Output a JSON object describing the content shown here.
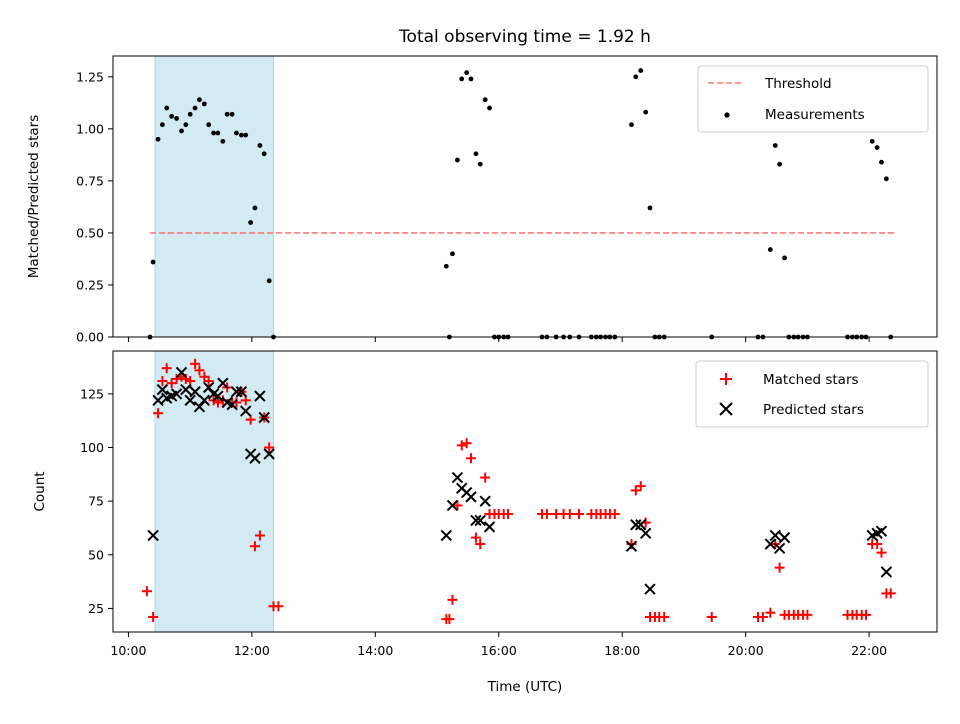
{
  "chart_data": {
    "title": "Total observing time = 1.92 h",
    "xlabel": "Time (UTC)",
    "x_ticks": [
      "10:00",
      "12:00",
      "14:00",
      "16:00",
      "18:00",
      "20:00",
      "22:00"
    ],
    "x_tick_hours": [
      10,
      12,
      14,
      16,
      18,
      20,
      22
    ],
    "xlim_hours": [
      9.75,
      23.1
    ],
    "shaded_interval_hours": [
      10.43,
      12.35
    ],
    "shade_color": "#add8e6",
    "panels": [
      {
        "type": "scatter",
        "ylabel": "Matched/Predicted stars",
        "ylim": [
          0,
          1.35
        ],
        "y_ticks": [
          0.0,
          0.25,
          0.5,
          0.75,
          1.0,
          1.25
        ],
        "y_tick_labels": [
          "0.00",
          "0.25",
          "0.50",
          "0.75",
          "1.00",
          "1.25"
        ],
        "legend_position": "upper-right",
        "threshold": {
          "name": "Threshold",
          "value": 0.5,
          "x_range": [
            10.35,
            22.45
          ],
          "color": "#ff7777"
        },
        "measurements": {
          "name": "Measurements",
          "color": "#000000",
          "points": [
            [
              10.35,
              0.0
            ],
            [
              10.4,
              0.36
            ],
            [
              10.48,
              0.95
            ],
            [
              10.55,
              1.02
            ],
            [
              10.62,
              1.1
            ],
            [
              10.7,
              1.06
            ],
            [
              10.78,
              1.05
            ],
            [
              10.86,
              0.99
            ],
            [
              10.93,
              1.02
            ],
            [
              11.0,
              1.07
            ],
            [
              11.08,
              1.1
            ],
            [
              11.15,
              1.14
            ],
            [
              11.23,
              1.12
            ],
            [
              11.3,
              1.02
            ],
            [
              11.38,
              0.98
            ],
            [
              11.45,
              0.98
            ],
            [
              11.53,
              0.94
            ],
            [
              11.6,
              1.07
            ],
            [
              11.68,
              1.07
            ],
            [
              11.75,
              0.98
            ],
            [
              11.83,
              0.97
            ],
            [
              11.9,
              0.97
            ],
            [
              11.98,
              0.55
            ],
            [
              12.05,
              0.62
            ],
            [
              12.13,
              0.92
            ],
            [
              12.2,
              0.88
            ],
            [
              12.28,
              0.27
            ],
            [
              12.35,
              0.0
            ],
            [
              15.15,
              0.34
            ],
            [
              15.2,
              0.0
            ],
            [
              15.25,
              0.4
            ],
            [
              15.33,
              0.85
            ],
            [
              15.4,
              1.24
            ],
            [
              15.48,
              1.27
            ],
            [
              15.55,
              1.24
            ],
            [
              15.63,
              0.88
            ],
            [
              15.7,
              0.83
            ],
            [
              15.78,
              1.14
            ],
            [
              15.85,
              1.1
            ],
            [
              15.93,
              0.0
            ],
            [
              16.0,
              0.0
            ],
            [
              16.08,
              0.0
            ],
            [
              16.15,
              0.0
            ],
            [
              16.7,
              0.0
            ],
            [
              16.78,
              0.0
            ],
            [
              16.93,
              0.0
            ],
            [
              17.05,
              0.0
            ],
            [
              17.15,
              0.0
            ],
            [
              17.3,
              0.0
            ],
            [
              17.5,
              0.0
            ],
            [
              17.58,
              0.0
            ],
            [
              17.65,
              0.0
            ],
            [
              17.73,
              0.0
            ],
            [
              17.8,
              0.0
            ],
            [
              17.88,
              0.0
            ],
            [
              18.15,
              1.02
            ],
            [
              18.22,
              1.25
            ],
            [
              18.3,
              1.28
            ],
            [
              18.38,
              1.08
            ],
            [
              18.45,
              0.62
            ],
            [
              18.53,
              0.0
            ],
            [
              18.6,
              0.0
            ],
            [
              18.68,
              0.0
            ],
            [
              19.45,
              0.0
            ],
            [
              20.2,
              0.0
            ],
            [
              20.28,
              0.0
            ],
            [
              20.4,
              0.42
            ],
            [
              20.48,
              0.92
            ],
            [
              20.55,
              0.83
            ],
            [
              20.63,
              0.38
            ],
            [
              20.7,
              0.0
            ],
            [
              20.78,
              0.0
            ],
            [
              20.85,
              0.0
            ],
            [
              20.93,
              0.0
            ],
            [
              21.0,
              0.0
            ],
            [
              21.65,
              0.0
            ],
            [
              21.73,
              0.0
            ],
            [
              21.8,
              0.0
            ],
            [
              21.88,
              0.0
            ],
            [
              21.95,
              0.0
            ],
            [
              22.05,
              0.94
            ],
            [
              22.13,
              0.91
            ],
            [
              22.2,
              0.84
            ],
            [
              22.28,
              0.76
            ],
            [
              22.35,
              0.0
            ]
          ]
        }
      },
      {
        "type": "scatter",
        "ylabel": "Count",
        "ylim": [
          14,
          145
        ],
        "y_ticks": [
          25,
          50,
          75,
          100,
          125
        ],
        "y_tick_labels": [
          "25",
          "50",
          "75",
          "100",
          "125"
        ],
        "legend_position": "upper-right",
        "matched": {
          "name": "Matched stars",
          "color": "#ff0000",
          "points": [
            [
              10.3,
              33
            ],
            [
              10.4,
              21
            ],
            [
              10.48,
              116
            ],
            [
              10.55,
              131
            ],
            [
              10.62,
              137
            ],
            [
              10.7,
              130
            ],
            [
              10.78,
              132
            ],
            [
              10.86,
              133
            ],
            [
              10.93,
              132
            ],
            [
              11.0,
              131
            ],
            [
              11.08,
              139
            ],
            [
              11.15,
              136
            ],
            [
              11.23,
              133
            ],
            [
              11.3,
              131
            ],
            [
              11.38,
              122
            ],
            [
              11.45,
              121
            ],
            [
              11.53,
              122
            ],
            [
              11.6,
              128
            ],
            [
              11.68,
              121
            ],
            [
              11.75,
              121
            ],
            [
              11.83,
              126
            ],
            [
              11.9,
              122
            ],
            [
              11.98,
              113
            ],
            [
              12.05,
              54
            ],
            [
              12.13,
              59
            ],
            [
              12.2,
              114
            ],
            [
              12.28,
              100
            ],
            [
              12.35,
              26
            ],
            [
              12.43,
              26
            ],
            [
              15.15,
              20
            ],
            [
              15.2,
              20
            ],
            [
              15.25,
              29
            ],
            [
              15.33,
              73
            ],
            [
              15.4,
              101
            ],
            [
              15.48,
              102
            ],
            [
              15.55,
              95
            ],
            [
              15.63,
              58
            ],
            [
              15.7,
              55
            ],
            [
              15.78,
              86
            ],
            [
              15.85,
              69
            ],
            [
              15.93,
              69
            ],
            [
              16.0,
              69
            ],
            [
              16.08,
              69
            ],
            [
              16.15,
              69
            ],
            [
              16.7,
              69
            ],
            [
              16.78,
              69
            ],
            [
              16.93,
              69
            ],
            [
              17.05,
              69
            ],
            [
              17.15,
              69
            ],
            [
              17.3,
              69
            ],
            [
              17.5,
              69
            ],
            [
              17.58,
              69
            ],
            [
              17.65,
              69
            ],
            [
              17.73,
              69
            ],
            [
              17.8,
              69
            ],
            [
              17.88,
              69
            ],
            [
              18.15,
              55
            ],
            [
              18.22,
              80
            ],
            [
              18.3,
              82
            ],
            [
              18.38,
              65
            ],
            [
              18.45,
              21
            ],
            [
              18.53,
              21
            ],
            [
              18.6,
              21
            ],
            [
              18.68,
              21
            ],
            [
              19.45,
              21
            ],
            [
              20.2,
              21
            ],
            [
              20.28,
              21
            ],
            [
              20.4,
              23
            ],
            [
              20.48,
              55
            ],
            [
              20.55,
              44
            ],
            [
              20.63,
              22
            ],
            [
              20.7,
              22
            ],
            [
              20.78,
              22
            ],
            [
              20.85,
              22
            ],
            [
              20.93,
              22
            ],
            [
              21.0,
              22
            ],
            [
              21.65,
              22
            ],
            [
              21.73,
              22
            ],
            [
              21.8,
              22
            ],
            [
              21.88,
              22
            ],
            [
              21.95,
              22
            ],
            [
              22.05,
              55
            ],
            [
              22.13,
              55
            ],
            [
              22.2,
              51
            ],
            [
              22.28,
              32
            ],
            [
              22.35,
              32
            ]
          ]
        },
        "predicted": {
          "name": "Predicted stars",
          "color": "#000000",
          "points": [
            [
              10.4,
              59
            ],
            [
              10.48,
              122
            ],
            [
              10.55,
              127
            ],
            [
              10.62,
              123
            ],
            [
              10.7,
              124
            ],
            [
              10.78,
              125
            ],
            [
              10.86,
              135
            ],
            [
              10.93,
              127
            ],
            [
              11.0,
              122
            ],
            [
              11.08,
              126
            ],
            [
              11.15,
              119
            ],
            [
              11.23,
              122
            ],
            [
              11.3,
              128
            ],
            [
              11.38,
              125
            ],
            [
              11.45,
              124
            ],
            [
              11.53,
              130
            ],
            [
              11.6,
              121
            ],
            [
              11.68,
              120
            ],
            [
              11.75,
              126
            ],
            [
              11.83,
              126
            ],
            [
              11.9,
              117
            ],
            [
              11.98,
              97
            ],
            [
              12.05,
              95
            ],
            [
              12.13,
              124
            ],
            [
              12.2,
              114
            ],
            [
              12.28,
              97
            ],
            [
              15.15,
              59
            ],
            [
              15.25,
              73
            ],
            [
              15.33,
              86
            ],
            [
              15.4,
              81
            ],
            [
              15.48,
              79
            ],
            [
              15.55,
              77
            ],
            [
              15.63,
              66
            ],
            [
              15.7,
              66
            ],
            [
              15.78,
              75
            ],
            [
              15.85,
              63
            ],
            [
              18.15,
              54
            ],
            [
              18.22,
              64
            ],
            [
              18.3,
              64
            ],
            [
              18.38,
              60
            ],
            [
              18.45,
              34
            ],
            [
              20.4,
              55
            ],
            [
              20.48,
              59
            ],
            [
              20.55,
              53
            ],
            [
              20.63,
              58
            ],
            [
              22.05,
              59
            ],
            [
              22.13,
              60
            ],
            [
              22.2,
              61
            ],
            [
              22.28,
              42
            ]
          ]
        }
      }
    ]
  }
}
